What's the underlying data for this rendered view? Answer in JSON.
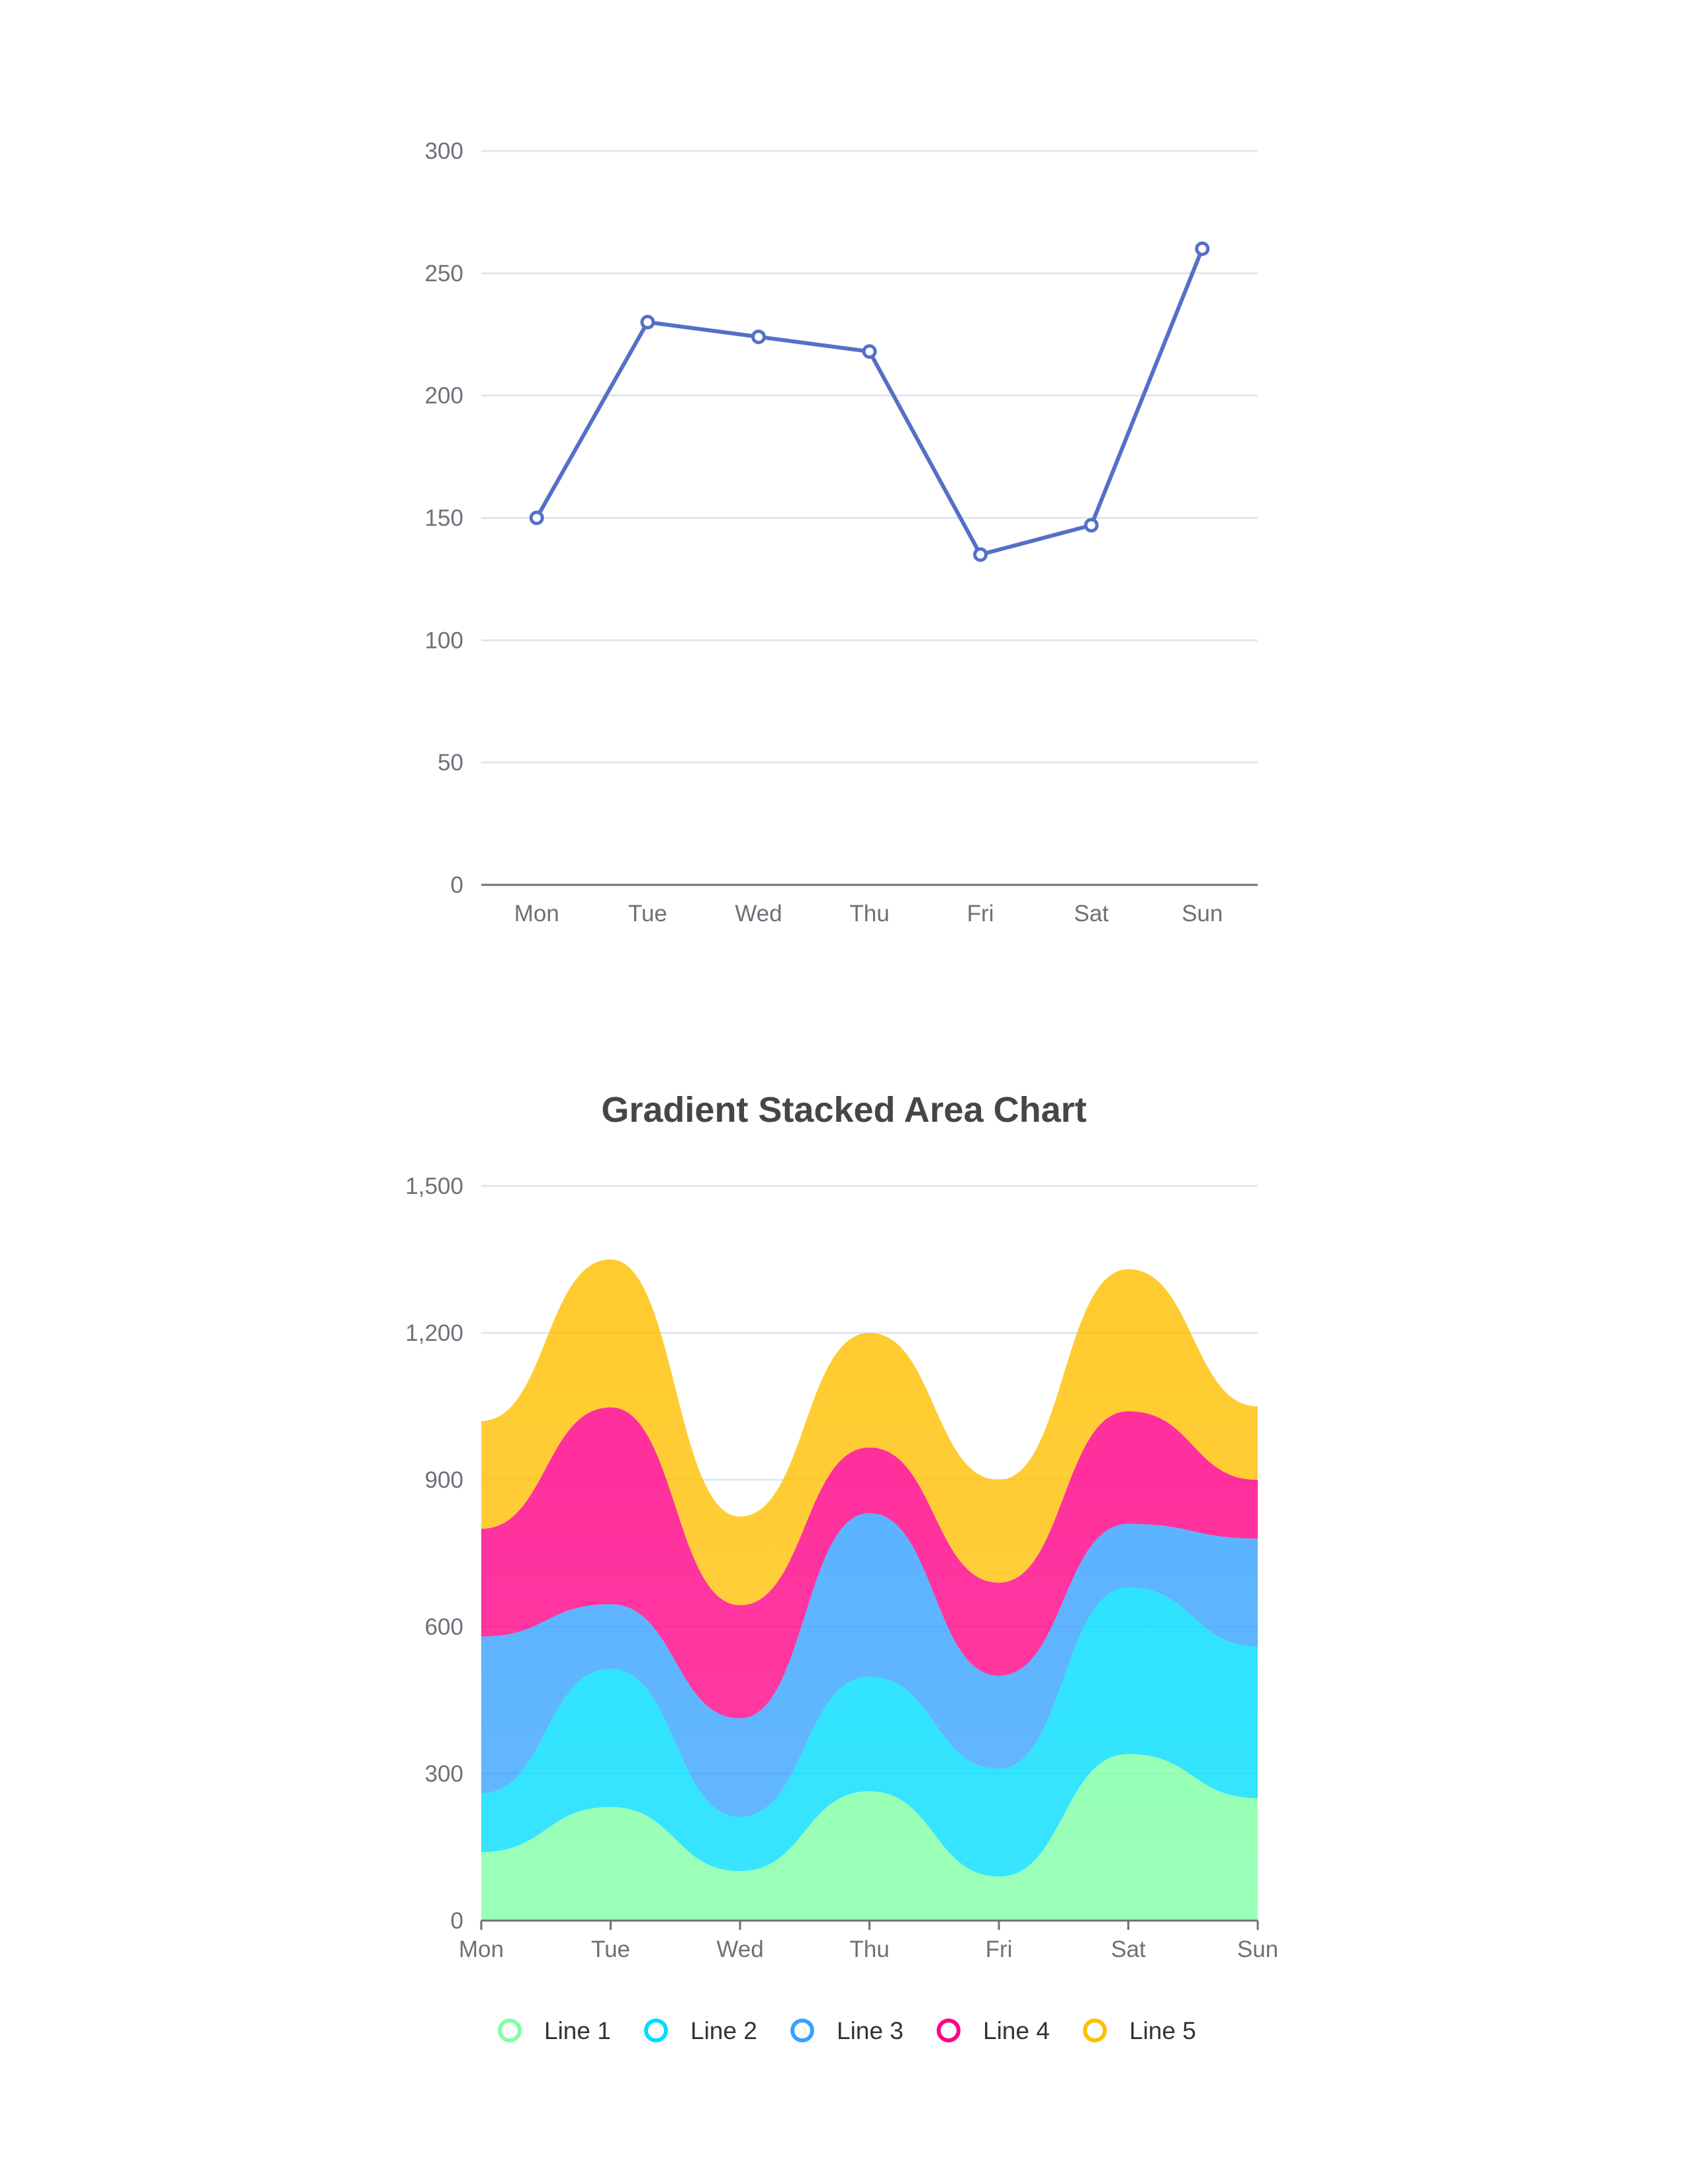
{
  "chart_data": [
    {
      "type": "line",
      "title": "",
      "categories": [
        "Mon",
        "Tue",
        "Wed",
        "Thu",
        "Fri",
        "Sat",
        "Sun"
      ],
      "series": [
        {
          "values": [
            150,
            230,
            224,
            218,
            135,
            147,
            260
          ],
          "color": "#5470c6"
        }
      ],
      "ylim": [
        0,
        300
      ],
      "yticks": [
        "0",
        "50",
        "100",
        "150",
        "200",
        "250",
        "300"
      ],
      "grid": true,
      "xlabel": "",
      "ylabel": ""
    },
    {
      "type": "area",
      "stacked": true,
      "smooth": true,
      "title": "Gradient Stacked Area Chart",
      "categories": [
        "Mon",
        "Tue",
        "Wed",
        "Thu",
        "Fri",
        "Sat",
        "Sun"
      ],
      "series": [
        {
          "name": "Line 1",
          "values": [
            140,
            232,
            101,
            264,
            90,
            340,
            250
          ],
          "color": "#80ffa5"
        },
        {
          "name": "Line 2",
          "values": [
            120,
            282,
            111,
            234,
            220,
            340,
            310
          ],
          "color": "#00ddff"
        },
        {
          "name": "Line 3",
          "values": [
            320,
            132,
            201,
            334,
            190,
            130,
            220
          ],
          "color": "#37a2ff"
        },
        {
          "name": "Line 4",
          "values": [
            220,
            402,
            231,
            134,
            190,
            230,
            120
          ],
          "color": "#ff0087"
        },
        {
          "name": "Line 5",
          "values": [
            220,
            302,
            181,
            234,
            210,
            290,
            150
          ],
          "color": "#ffbf00"
        }
      ],
      "ylim": [
        0,
        1500
      ],
      "yticks": [
        "0",
        "300",
        "600",
        "900",
        "1,200",
        "1,500"
      ],
      "grid": true,
      "legend_position": "bottom",
      "xlabel": "",
      "ylabel": ""
    }
  ]
}
